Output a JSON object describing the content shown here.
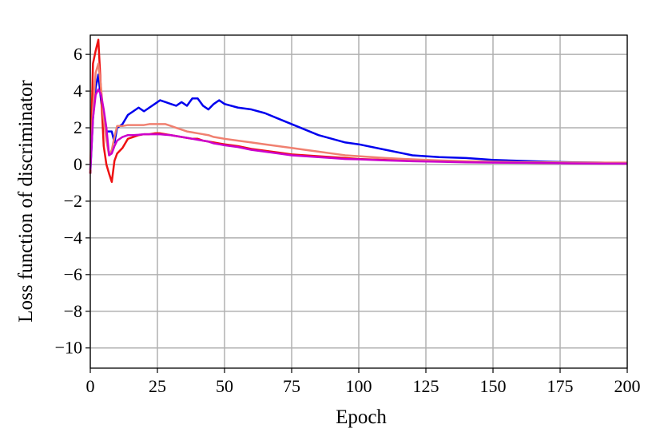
{
  "chart_data": {
    "type": "line",
    "x_label": "Epoch",
    "y_label": "Loss function of discriminator",
    "x": [
      0,
      1,
      2,
      3,
      4,
      5,
      6,
      7,
      8,
      9,
      10,
      12,
      14,
      16,
      18,
      20,
      22,
      24,
      26,
      28,
      30,
      32,
      34,
      36,
      38,
      40,
      42,
      44,
      46,
      48,
      50,
      55,
      60,
      65,
      70,
      75,
      80,
      85,
      90,
      95,
      100,
      110,
      120,
      130,
      140,
      150,
      160,
      170,
      180,
      190,
      200
    ],
    "series": [
      {
        "color": "#0000ee",
        "values": [
          -0.5,
          2.5,
          4.2,
          4.9,
          3.5,
          2.4,
          1.8,
          1.8,
          1.8,
          1.2,
          2.0,
          2.2,
          2.7,
          2.9,
          3.1,
          2.9,
          3.1,
          3.3,
          3.5,
          3.4,
          3.3,
          3.2,
          3.4,
          3.2,
          3.6,
          3.6,
          3.2,
          3.0,
          3.3,
          3.5,
          3.3,
          3.1,
          3.0,
          2.8,
          2.5,
          2.2,
          1.9,
          1.6,
          1.4,
          1.2,
          1.1,
          0.8,
          0.5,
          0.4,
          0.35,
          0.25,
          0.2,
          0.15,
          0.12,
          0.1,
          0.08
        ]
      },
      {
        "color": "#ee1111",
        "values": [
          -0.5,
          5.5,
          6.2,
          6.8,
          4.0,
          1.0,
          0.0,
          -0.5,
          -0.95,
          0.2,
          0.6,
          0.9,
          1.4,
          1.5,
          1.6,
          1.65,
          1.65,
          1.7,
          1.7,
          1.65,
          1.6,
          1.55,
          1.5,
          1.45,
          1.4,
          1.4,
          1.3,
          1.25,
          1.2,
          1.15,
          1.1,
          1.0,
          0.85,
          0.75,
          0.65,
          0.55,
          0.5,
          0.45,
          0.4,
          0.35,
          0.3,
          0.25,
          0.2,
          0.17,
          0.14,
          0.12,
          0.1,
          0.08,
          0.07,
          0.06,
          0.05
        ]
      },
      {
        "color": "#f08070",
        "values": [
          -0.3,
          3.0,
          5.0,
          5.5,
          4.2,
          2.5,
          1.3,
          0.5,
          0.8,
          1.5,
          2.1,
          2.1,
          2.15,
          2.15,
          2.15,
          2.15,
          2.2,
          2.2,
          2.2,
          2.2,
          2.1,
          2.0,
          1.9,
          1.8,
          1.75,
          1.7,
          1.65,
          1.6,
          1.5,
          1.45,
          1.4,
          1.3,
          1.2,
          1.1,
          1.0,
          0.9,
          0.8,
          0.7,
          0.6,
          0.5,
          0.45,
          0.35,
          0.28,
          0.22,
          0.18,
          0.15,
          0.13,
          0.12,
          0.11,
          0.1,
          0.1
        ]
      },
      {
        "color": "#cc00cc",
        "values": [
          -0.3,
          2.5,
          3.8,
          4.1,
          3.8,
          3.0,
          2.0,
          0.5,
          0.6,
          1.0,
          1.3,
          1.5,
          1.6,
          1.6,
          1.62,
          1.65,
          1.65,
          1.65,
          1.65,
          1.62,
          1.6,
          1.55,
          1.5,
          1.45,
          1.4,
          1.35,
          1.3,
          1.25,
          1.15,
          1.1,
          1.05,
          0.95,
          0.8,
          0.7,
          0.6,
          0.5,
          0.45,
          0.4,
          0.35,
          0.3,
          0.28,
          0.22,
          0.18,
          0.15,
          0.12,
          0.1,
          0.09,
          0.08,
          0.06,
          0.05,
          0.05
        ]
      }
    ],
    "xlim": [
      0,
      200
    ],
    "xticks": [
      0,
      25,
      50,
      75,
      100,
      125,
      150,
      175,
      200
    ],
    "ylim": [
      -11.1,
      7.05
    ],
    "yticks": [
      {
        "value": -10,
        "label": "−10"
      },
      {
        "value": -8,
        "label": "−8"
      },
      {
        "value": -6,
        "label": "−6"
      },
      {
        "value": -4,
        "label": "−4"
      },
      {
        "value": -2,
        "label": "−2"
      },
      0,
      2,
      4,
      6
    ],
    "grid": true
  }
}
